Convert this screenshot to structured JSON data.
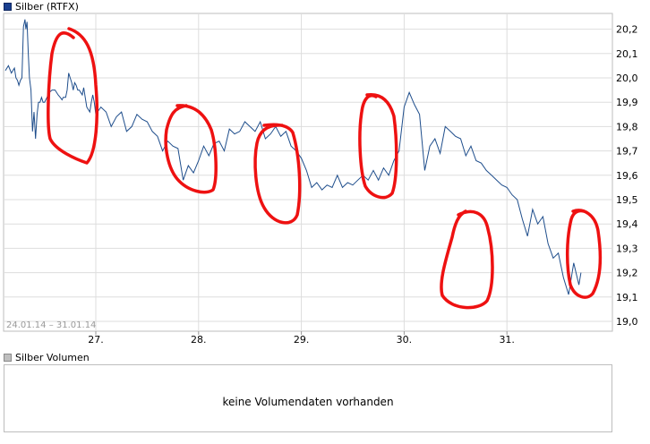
{
  "legend": {
    "price_label": "Silber (RTFX)",
    "volume_label": "Silber Volumen"
  },
  "colors": {
    "line": "#1f4e8c",
    "grid": "#dddddd",
    "annotation": "#ee1111",
    "volume_swatch": "#bfbfbf"
  },
  "volume": {
    "message": "keine Volumendaten vorhanden"
  },
  "chart_data": {
    "type": "line",
    "date_range": "24.01.14 – 31.01.14",
    "x_ticks": [
      "27.",
      "28.",
      "29.",
      "30.",
      "31."
    ],
    "y_ticks": [
      "20,2",
      "20,1",
      "20,0",
      "19,9",
      "19,8",
      "19,7",
      "19,6",
      "19,5",
      "19,4",
      "19,3",
      "19,2",
      "19,1",
      "19,0"
    ],
    "ylim": [
      19.0,
      20.25
    ],
    "grid": true,
    "series": [
      {
        "x": [
          24.0,
          24.1,
          24.2,
          24.3,
          24.35,
          24.4,
          24.45,
          24.5,
          24.55,
          24.6,
          24.65,
          24.68,
          24.72,
          24.76,
          24.8,
          24.85,
          24.9,
          24.95,
          25.0,
          25.05,
          25.1,
          25.15,
          25.2,
          25.25,
          25.3,
          25.38,
          25.45,
          25.55,
          25.65,
          25.75,
          25.82,
          25.88,
          25.92,
          25.96,
          26.0,
          26.05,
          26.1,
          26.15,
          26.2,
          26.25,
          26.3,
          26.35,
          26.4,
          26.45,
          26.5,
          26.55,
          26.6,
          26.65,
          26.7,
          26.75,
          26.8,
          26.85,
          26.9,
          26.95,
          27.0,
          27.05,
          27.1,
          27.15,
          27.2,
          27.25,
          27.3,
          27.35,
          27.4,
          27.45,
          27.5,
          27.55,
          27.6,
          27.65,
          27.7,
          27.75,
          27.8,
          27.85,
          27.9,
          27.95,
          28.0,
          28.05,
          28.1,
          28.15,
          28.2,
          28.25,
          28.3,
          28.35,
          28.4,
          28.45,
          28.5,
          28.55,
          28.6,
          28.65,
          28.7,
          28.75,
          28.8,
          28.85,
          28.9,
          28.95,
          29.0,
          29.05,
          29.1,
          29.15,
          29.2,
          29.25,
          29.3,
          29.35,
          29.4,
          29.45,
          29.5,
          29.55,
          29.6,
          29.65,
          29.7,
          29.75,
          29.8,
          29.85,
          29.9,
          29.95,
          30.0,
          30.05,
          30.1,
          30.15,
          30.2,
          30.25,
          30.3,
          30.35,
          30.4,
          30.45,
          30.5,
          30.55,
          30.6,
          30.65,
          30.7,
          30.75,
          30.8,
          30.85,
          30.9,
          30.95,
          31.0,
          31.05,
          31.1,
          31.15,
          31.2,
          31.25,
          31.3,
          31.35,
          31.4,
          31.45,
          31.5,
          31.55,
          31.6,
          31.65,
          31.7,
          31.72
        ],
        "y": [
          20.03,
          20.05,
          20.02,
          20.04,
          20.0,
          19.99,
          19.97,
          19.99,
          20.0,
          20.21,
          20.24,
          20.2,
          20.23,
          20.1,
          20.0,
          19.95,
          19.78,
          19.86,
          19.75,
          19.85,
          19.9,
          19.9,
          19.92,
          19.9,
          19.9,
          19.92,
          19.94,
          19.95,
          19.95,
          19.93,
          19.92,
          19.91,
          19.92,
          19.92,
          19.92,
          19.95,
          20.02,
          20.0,
          19.98,
          19.95,
          19.98,
          19.97,
          19.95,
          19.95,
          19.94,
          19.93,
          19.96,
          19.92,
          19.88,
          19.87,
          19.86,
          19.9,
          19.93,
          19.9,
          19.85,
          19.88,
          19.86,
          19.8,
          19.84,
          19.86,
          19.78,
          19.8,
          19.85,
          19.83,
          19.82,
          19.78,
          19.76,
          19.7,
          19.74,
          19.72,
          19.71,
          19.58,
          19.64,
          19.61,
          19.66,
          19.72,
          19.68,
          19.73,
          19.74,
          19.7,
          19.79,
          19.77,
          19.78,
          19.82,
          19.8,
          19.78,
          19.82,
          19.75,
          19.77,
          19.8,
          19.76,
          19.78,
          19.72,
          19.7,
          19.67,
          19.62,
          19.55,
          19.57,
          19.54,
          19.56,
          19.55,
          19.6,
          19.55,
          19.57,
          19.56,
          19.58,
          19.6,
          19.58,
          19.62,
          19.58,
          19.63,
          19.6,
          19.66,
          19.7,
          19.88,
          19.94,
          19.89,
          19.85,
          19.62,
          19.72,
          19.75,
          19.69,
          19.8,
          19.78,
          19.76,
          19.75,
          19.68,
          19.72,
          19.66,
          19.65,
          19.62,
          19.6,
          19.58,
          19.56,
          19.55,
          19.52,
          19.5,
          19.42,
          19.35,
          19.46,
          19.4,
          19.43,
          19.32,
          19.26,
          19.28,
          19.18,
          19.11,
          19.24,
          19.15,
          19.2
        ],
        "color": "#1f4e8c"
      }
    ]
  }
}
